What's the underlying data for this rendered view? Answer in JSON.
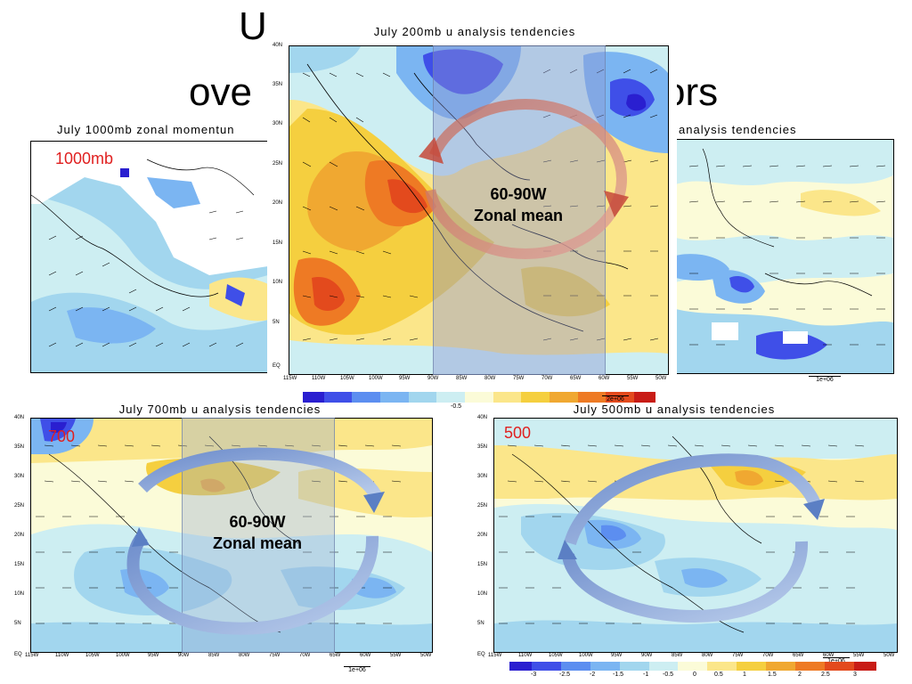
{
  "slide": {
    "title_line1": "U",
    "title_line2_left": "ove",
    "title_line2_right": "ors"
  },
  "panels": {
    "p1000": {
      "title": "July 1000mb zonal momentun",
      "level_tag": "1000mb"
    },
    "p200": {
      "title": "July 200mb u analysis tendencies",
      "zonal_label_line1": "60-90W",
      "zonal_label_line2": "Zonal mean",
      "scale_label": "2e+06"
    },
    "p850": {
      "title": "analysis tendencies",
      "scale_label": "1e+06"
    },
    "p700": {
      "title": "July 700mb u analysis tendencies",
      "level_tag": "700",
      "zonal_label_line1": "60-90W",
      "zonal_label_line2": "Zonal mean",
      "scale_label": "1e+06"
    },
    "p500": {
      "title": "July 500mb u analysis tendencies",
      "level_tag": "500",
      "scale_label": "1e+06"
    }
  },
  "lat_labels": [
    "40N",
    "35N",
    "30N",
    "25N",
    "20N",
    "15N",
    "10N",
    "5N",
    "EQ"
  ],
  "lon_labels": [
    "115W",
    "110W",
    "105W",
    "100W",
    "95W",
    "90W",
    "85W",
    "80W",
    "75W",
    "70W",
    "65W",
    "60W",
    "55W",
    "50W"
  ],
  "lon_labels_left": [
    "115W",
    "110W",
    "105W",
    "100W",
    "95W",
    "90W",
    "85W",
    "80W"
  ],
  "lon_labels_right": [
    "80W",
    "75W",
    "70W",
    "65W",
    "60W",
    "55W",
    "50W"
  ],
  "colorbar": {
    "labels": [
      "-3",
      "-2.5",
      "-2",
      "-1.5",
      "-1",
      "-0.5",
      "0",
      "0.5",
      "1",
      "1.5",
      "2",
      "2.5",
      "3"
    ],
    "colors": [
      "#2a1fd0",
      "#3f4fe8",
      "#5c8ef0",
      "#7bb5f2",
      "#a2d6ee",
      "#cdeef2",
      "#fbfbd8",
      "#fbe68a",
      "#f5cf3f",
      "#f0a831",
      "#ee7a24",
      "#e34a1d",
      "#c81c16"
    ]
  }
}
